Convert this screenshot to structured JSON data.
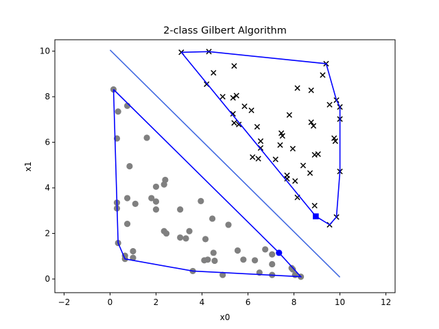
{
  "chart_data": {
    "type": "scatter",
    "title": "2-class Gilbert Algorithm",
    "xlabel": "x0",
    "ylabel": "x1",
    "xlim": [
      -2.4,
      12.4
    ],
    "ylim": [
      -0.6,
      10.5
    ],
    "xticks": [
      -2,
      0,
      2,
      4,
      6,
      8,
      10,
      12
    ],
    "yticks": [
      0,
      2,
      4,
      6,
      8,
      10
    ],
    "grid": false,
    "colors": {
      "class0": "#808080",
      "class1": "#000000",
      "hull": "#0000ff",
      "separator": "#4169e1",
      "closest_points": "#0000ff"
    },
    "series": [
      {
        "marker": "circle",
        "points": [
          [
            0.15,
            8.32
          ],
          [
            0.35,
            7.35
          ],
          [
            0.75,
            7.6
          ],
          [
            0.3,
            6.17
          ],
          [
            1.6,
            6.2
          ],
          [
            0.85,
            4.95
          ],
          [
            2.4,
            4.35
          ],
          [
            2.0,
            4.05
          ],
          [
            2.35,
            4.15
          ],
          [
            1.8,
            3.55
          ],
          [
            2.0,
            3.4
          ],
          [
            0.3,
            3.35
          ],
          [
            0.3,
            3.1
          ],
          [
            0.75,
            3.55
          ],
          [
            1.1,
            3.3
          ],
          [
            2.0,
            3.05
          ],
          [
            3.05,
            3.05
          ],
          [
            3.95,
            3.42
          ],
          [
            4.45,
            2.65
          ],
          [
            5.15,
            2.38
          ],
          [
            0.75,
            2.42
          ],
          [
            2.35,
            2.1
          ],
          [
            2.45,
            2.0
          ],
          [
            3.45,
            2.1
          ],
          [
            3.05,
            1.82
          ],
          [
            3.3,
            1.78
          ],
          [
            4.15,
            1.75
          ],
          [
            0.35,
            1.58
          ],
          [
            1.0,
            1.22
          ],
          [
            0.65,
            1.02
          ],
          [
            1.0,
            0.93
          ],
          [
            0.65,
            0.88
          ],
          [
            4.5,
            1.15
          ],
          [
            5.55,
            1.25
          ],
          [
            6.75,
            1.3
          ],
          [
            7.05,
            1.08
          ],
          [
            4.1,
            0.82
          ],
          [
            4.25,
            0.85
          ],
          [
            4.55,
            0.8
          ],
          [
            5.8,
            0.85
          ],
          [
            6.3,
            0.82
          ],
          [
            7.05,
            0.65
          ],
          [
            3.6,
            0.35
          ],
          [
            4.9,
            0.18
          ],
          [
            6.5,
            0.28
          ],
          [
            7.05,
            0.18
          ],
          [
            7.9,
            0.48
          ],
          [
            8.05,
            0.18
          ],
          [
            8.3,
            0.1
          ],
          [
            7.95,
            0.42
          ]
        ]
      },
      {
        "marker": "x",
        "points": [
          [
            3.1,
            9.95
          ],
          [
            4.3,
            9.98
          ],
          [
            9.4,
            9.45
          ],
          [
            4.5,
            9.05
          ],
          [
            5.4,
            9.35
          ],
          [
            9.25,
            8.95
          ],
          [
            4.2,
            8.55
          ],
          [
            8.15,
            8.38
          ],
          [
            8.75,
            8.28
          ],
          [
            4.9,
            8.0
          ],
          [
            5.5,
            8.05
          ],
          [
            5.35,
            7.95
          ],
          [
            5.85,
            7.58
          ],
          [
            6.15,
            7.4
          ],
          [
            9.55,
            7.65
          ],
          [
            9.85,
            7.85
          ],
          [
            10.0,
            7.55
          ],
          [
            7.8,
            7.2
          ],
          [
            5.35,
            7.25
          ],
          [
            10.0,
            7.02
          ],
          [
            5.4,
            6.85
          ],
          [
            5.6,
            6.78
          ],
          [
            6.4,
            6.68
          ],
          [
            8.75,
            6.88
          ],
          [
            8.85,
            6.72
          ],
          [
            7.45,
            6.4
          ],
          [
            7.5,
            6.28
          ],
          [
            9.75,
            6.18
          ],
          [
            9.8,
            6.05
          ],
          [
            6.55,
            6.05
          ],
          [
            7.4,
            5.88
          ],
          [
            7.95,
            5.72
          ],
          [
            6.55,
            5.75
          ],
          [
            6.2,
            5.35
          ],
          [
            6.45,
            5.28
          ],
          [
            7.2,
            5.25
          ],
          [
            8.9,
            5.45
          ],
          [
            9.05,
            5.48
          ],
          [
            8.4,
            4.98
          ],
          [
            8.7,
            4.65
          ],
          [
            10.0,
            4.72
          ],
          [
            7.7,
            4.55
          ],
          [
            7.7,
            4.4
          ],
          [
            8.05,
            4.3
          ],
          [
            8.15,
            3.58
          ],
          [
            8.9,
            3.22
          ],
          [
            9.85,
            2.72
          ],
          [
            9.55,
            2.38
          ]
        ]
      }
    ],
    "hulls": [
      [
        [
          0.15,
          8.32
        ],
        [
          7.35,
          1.15
        ],
        [
          8.3,
          0.1
        ],
        [
          3.6,
          0.35
        ],
        [
          0.65,
          0.88
        ],
        [
          0.35,
          1.58
        ],
        [
          0.15,
          8.32
        ]
      ],
      [
        [
          3.1,
          9.95
        ],
        [
          4.3,
          9.98
        ],
        [
          9.4,
          9.45
        ],
        [
          9.85,
          7.85
        ],
        [
          10.0,
          7.55
        ],
        [
          10.0,
          4.72
        ],
        [
          9.85,
          2.72
        ],
        [
          9.55,
          2.38
        ],
        [
          8.95,
          2.75
        ],
        [
          3.1,
          9.95
        ]
      ]
    ],
    "separator": [
      [
        0.0,
        10.05
      ],
      [
        10.0,
        0.08
      ]
    ],
    "closest_points": {
      "class0": [
        7.35,
        1.15
      ],
      "class1": [
        8.95,
        2.75
      ]
    }
  }
}
